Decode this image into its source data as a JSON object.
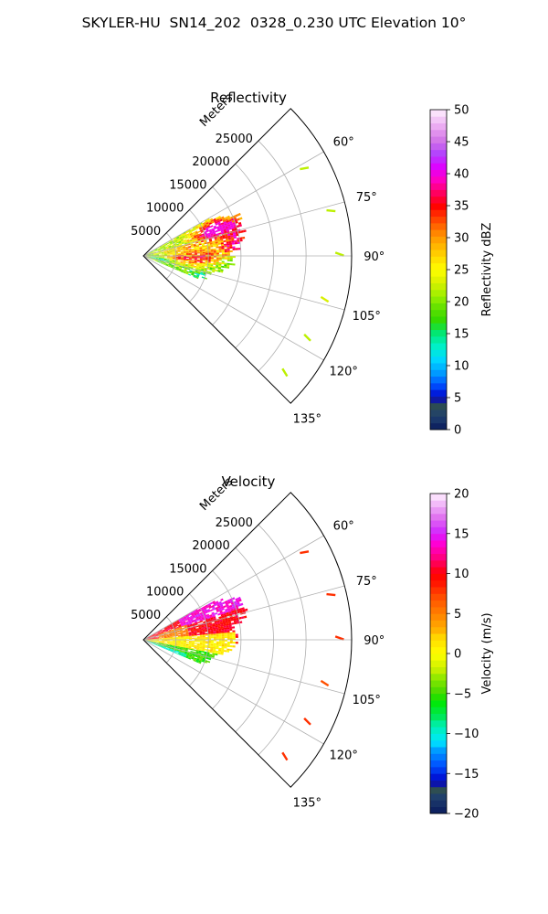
{
  "figure": {
    "suptitle": "SKYLER-HU  SN14_202  0328_0.230 UTC Elevation 10°"
  },
  "chart_data": [
    {
      "type": "polar-sector (radar PPI)",
      "title": "Reflectivity",
      "radial_axis_label": "Meters",
      "radial_ticks": [
        5000,
        10000,
        15000,
        20000,
        25000
      ],
      "radial_tick_labels": [
        "5000",
        "10000",
        "15000",
        "20000",
        "25000"
      ],
      "radial_range": [
        0,
        32000
      ],
      "azimuth_range_deg": [
        45,
        135
      ],
      "azimuth_ticks_deg": [
        60,
        75,
        90,
        105,
        120,
        135
      ],
      "azimuth_tick_labels": [
        "60°",
        "75°",
        "90°",
        "105°",
        "120°",
        "135°"
      ],
      "grid": true,
      "colorbar": {
        "label": "Reflectivity dBZ",
        "range": [
          0,
          50
        ],
        "ticks": [
          0,
          5,
          10,
          15,
          20,
          25,
          30,
          35,
          40,
          45,
          50
        ],
        "tick_labels": [
          "0",
          "5",
          "10",
          "15",
          "20",
          "25",
          "30",
          "35",
          "40",
          "45",
          "50"
        ]
      },
      "echo_extent": {
        "azimuth_deg": [
          60,
          112
        ],
        "range_m": [
          0,
          17000
        ]
      },
      "cells": [
        {
          "az": 67,
          "r": 11500,
          "value": 35
        },
        {
          "az": 72,
          "r": 10500,
          "value": 34
        },
        {
          "az": 74,
          "r": 14500,
          "value": 33
        },
        {
          "az": 83,
          "r": 14200,
          "value": 36
        },
        {
          "az": 92,
          "r": 4800,
          "value": 33
        },
        {
          "az": 90,
          "r": 8500,
          "value": 30
        },
        {
          "az": 80,
          "r": 7000,
          "value": 29
        },
        {
          "az": 68,
          "r": 14000,
          "value": 28
        },
        {
          "az": 85,
          "r": 11000,
          "value": 27
        },
        {
          "az": 95,
          "r": 9000,
          "value": 26
        },
        {
          "az": 100,
          "r": 7000,
          "value": 24
        },
        {
          "az": 104,
          "r": 11000,
          "value": 18
        },
        {
          "az": 110,
          "r": 8500,
          "value": 16
        },
        {
          "az": 96,
          "r": 14500,
          "value": 17
        },
        {
          "az": 62,
          "r": 15000,
          "value": 22
        },
        {
          "az": 78,
          "r": 3000,
          "value": 25
        },
        {
          "az": 88,
          "r": 2000,
          "value": 20
        },
        {
          "az": 100,
          "r": 2500,
          "value": 14
        },
        {
          "az": 66,
          "r": 8000,
          "value": 26
        },
        {
          "az": 93,
          "r": 12500,
          "value": 23
        }
      ],
      "far_echoes": [
        {
          "az": 61,
          "r": 27500,
          "value": 22
        },
        {
          "az": 76,
          "r": 29000,
          "value": 22
        },
        {
          "az": 89,
          "r": 29500,
          "value": 22
        },
        {
          "az": 103,
          "r": 28000,
          "value": 23
        },
        {
          "az": 116,
          "r": 27500,
          "value": 22
        },
        {
          "az": 129,
          "r": 27500,
          "value": 22
        }
      ]
    },
    {
      "type": "polar-sector (radar PPI)",
      "title": "Velocity",
      "radial_axis_label": "Meters",
      "radial_ticks": [
        5000,
        10000,
        15000,
        20000,
        25000
      ],
      "radial_tick_labels": [
        "5000",
        "10000",
        "15000",
        "20000",
        "25000"
      ],
      "radial_range": [
        0,
        32000
      ],
      "azimuth_range_deg": [
        45,
        135
      ],
      "azimuth_ticks_deg": [
        60,
        75,
        90,
        105,
        120,
        135
      ],
      "azimuth_tick_labels": [
        "60°",
        "75°",
        "90°",
        "105°",
        "120°",
        "135°"
      ],
      "grid": true,
      "colorbar": {
        "label": "Velocity (m/s)",
        "range": [
          -20,
          20
        ],
        "ticks": [
          -20,
          -15,
          -10,
          -5,
          0,
          5,
          10,
          15,
          20
        ],
        "tick_labels": [
          "−20",
          "−15",
          "−10",
          "−5",
          "0",
          "5",
          "10",
          "15",
          "20"
        ]
      },
      "echo_extent": {
        "azimuth_deg": [
          60,
          112
        ],
        "range_m": [
          0,
          17000
        ]
      },
      "velocity_pattern": [
        {
          "az_range": [
            60,
            72
          ],
          "r_range": [
            6000,
            17000
          ],
          "value": 14
        },
        {
          "az_range": [
            72,
            95
          ],
          "r_range": [
            7000,
            17000
          ],
          "value": 10
        },
        {
          "az_range": [
            70,
            95
          ],
          "r_range": [
            2000,
            7000
          ],
          "value": 5
        },
        {
          "az_range": [
            85,
            100
          ],
          "r_range": [
            0,
            14000
          ],
          "value": 1
        },
        {
          "az_range": [
            100,
            112
          ],
          "r_range": [
            0,
            12000
          ],
          "value": -5
        },
        {
          "az_range": [
            108,
            114
          ],
          "r_range": [
            0,
            7000
          ],
          "value": -9
        }
      ],
      "far_echoes": [
        {
          "az": 61,
          "r": 27500,
          "value": 8
        },
        {
          "az": 76,
          "r": 29000,
          "value": 8
        },
        {
          "az": 89,
          "r": 29500,
          "value": 8
        },
        {
          "az": 103,
          "r": 28000,
          "value": 7
        },
        {
          "az": 116,
          "r": 27500,
          "value": 8
        },
        {
          "az": 129,
          "r": 27500,
          "value": 8
        }
      ]
    }
  ]
}
